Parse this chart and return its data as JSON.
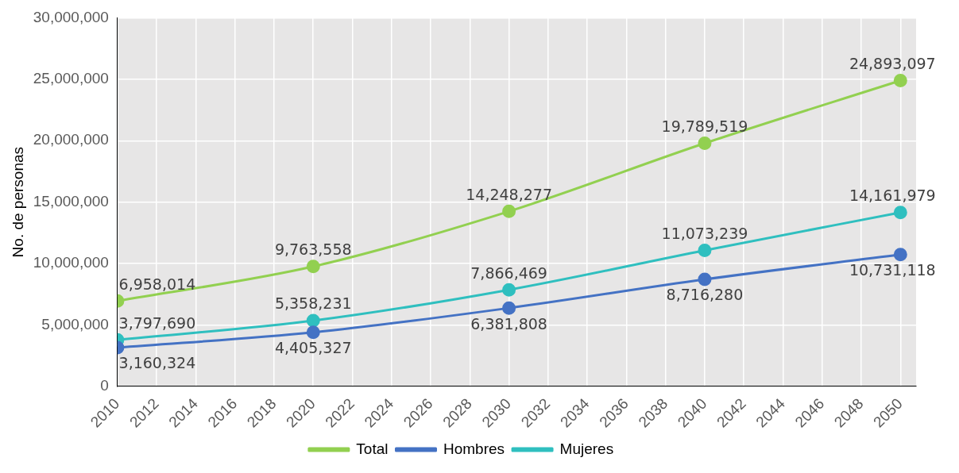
{
  "chart_data": {
    "type": "line",
    "ylabel": "No. de personas",
    "x": [
      2010,
      2020,
      2030,
      2040,
      2050
    ],
    "series": [
      {
        "name": "Total",
        "color": "#92d050",
        "values": [
          6958014,
          9763558,
          14248277,
          19789519,
          24893097
        ],
        "value_labels": [
          "6,958,014",
          "9,763,558",
          "14,248,277",
          "19,789,519",
          "24,893,097"
        ]
      },
      {
        "name": "Hombres",
        "color": "#4472c4",
        "values": [
          3160324,
          4405327,
          6381808,
          8716280,
          10731118
        ],
        "value_labels": [
          "3,160,324",
          "4,405,327",
          "6,381,808",
          "8,716,280",
          "10,731,118"
        ]
      },
      {
        "name": "Mujeres",
        "color": "#2fbfbf",
        "values": [
          3797690,
          5358231,
          7866469,
          11073239,
          14161979
        ],
        "value_labels": [
          "3,797,690",
          "5,358,231",
          "7,866,469",
          "11,073,239",
          "14,161,979"
        ]
      }
    ],
    "xlim": [
      2010,
      2050.8
    ],
    "xticks": [
      2010,
      2012,
      2014,
      2016,
      2018,
      2020,
      2022,
      2024,
      2026,
      2028,
      2030,
      2032,
      2034,
      2036,
      2038,
      2040,
      2042,
      2044,
      2046,
      2048,
      2050
    ],
    "ylim": [
      0,
      30000000
    ],
    "yticks": [
      0,
      {
        "value": 5000000,
        "label": "5,000,000"
      },
      {
        "value": 10000000,
        "label": "10,000,000"
      },
      {
        "value": 15000000,
        "label": "15,000,000"
      },
      {
        "value": 20000000,
        "label": "20,000,000"
      },
      {
        "value": 25000000,
        "label": "25,000,000"
      },
      {
        "value": 30000000,
        "label": "30,000,000"
      }
    ],
    "grid": true,
    "legend": "bottom",
    "marker": "circle",
    "line_style": "solid"
  }
}
